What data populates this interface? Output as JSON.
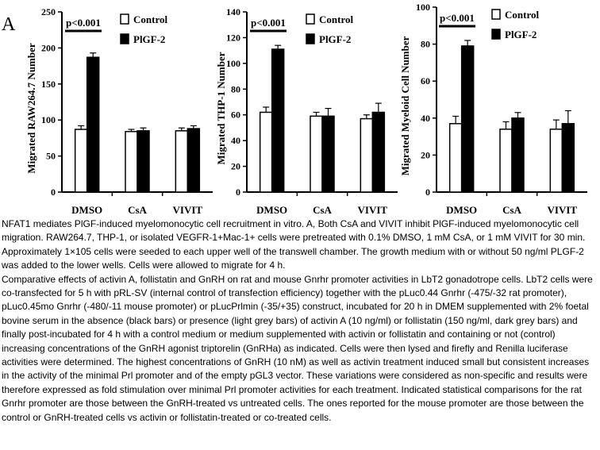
{
  "panel_label": "A",
  "chart_data": [
    {
      "type": "bar",
      "title": "",
      "ylabel": "Migrated RAW264.7 Number",
      "xlabel": "",
      "categories": [
        "DMSO",
        "CsA",
        "VIVIT"
      ],
      "ylim": [
        0,
        250
      ],
      "yticks": [
        0,
        50,
        100,
        150,
        200,
        250
      ],
      "series": [
        {
          "name": "Control",
          "color": "#ffffff",
          "values": [
            87,
            84,
            85
          ],
          "errors": [
            5,
            3,
            4
          ]
        },
        {
          "name": "PlGF-2",
          "color": "#000000",
          "values": [
            187,
            85,
            88
          ],
          "errors": [
            6,
            4,
            4
          ]
        }
      ],
      "significance": "p<0.001",
      "legend": "top-right"
    },
    {
      "type": "bar",
      "title": "",
      "ylabel": "Migrated THP-1 Number",
      "xlabel": "",
      "categories": [
        "DMSO",
        "CsA",
        "VIVIT"
      ],
      "ylim": [
        0,
        140
      ],
      "yticks": [
        0,
        20,
        40,
        60,
        80,
        100,
        120,
        140
      ],
      "series": [
        {
          "name": "Control",
          "color": "#ffffff",
          "values": [
            62,
            59,
            57
          ],
          "errors": [
            4,
            3,
            3
          ]
        },
        {
          "name": "PlGF-2",
          "color": "#000000",
          "values": [
            111,
            59,
            62
          ],
          "errors": [
            3,
            6,
            7
          ]
        }
      ],
      "significance": "p<0.001",
      "legend": "top-right"
    },
    {
      "type": "bar",
      "title": "",
      "ylabel": "Migrated Myeloid Cell Number",
      "xlabel": "",
      "categories": [
        "DMSO",
        "CsA",
        "VIVIT"
      ],
      "ylim": [
        0,
        100
      ],
      "yticks": [
        0,
        20,
        40,
        60,
        80,
        100
      ],
      "series": [
        {
          "name": "Control",
          "color": "#ffffff",
          "values": [
            37,
            34,
            34
          ],
          "errors": [
            4,
            4,
            5
          ]
        },
        {
          "name": "PlGF-2",
          "color": "#000000",
          "values": [
            79,
            40,
            37
          ],
          "errors": [
            3,
            3,
            7
          ]
        }
      ],
      "significance": "p<0.001",
      "legend": "top-right"
    }
  ],
  "caption": {
    "paragraph1": "NFAT1 mediates PlGF-induced myelomonocytic cell recruitment in vitro. A, Both CsA and VIVIT inhibit PlGF-induced myelomonocytic cell migration. RAW264.7, THP-1, or isolated VEGFR-1+Mac-1+ cells were pretreated with 0.1% DMSO, 1 mM CsA, or 1 mM VIVIT for 30 min. Approximately 1×105 cells were seeded to each upper well of the transwell chamber. The growth medium with or without 50 ng/ml PLGF-2 was added to the lower wells. Cells were allowed to migrate for 4 h.",
    "paragraph2": "Comparative effects of activin A, follistatin and GnRH on rat and mouse Gnrhr promoter activities in LbT2 gonadotrope cells. LbT2 cells were co-transfected for 5 h with pRL-SV (internal control of transfection efficiency) together with the pLuc0.44 Gnrhr (-475/-32 rat promoter), pLuc0.45mo Gnrhr (-480/-11 mouse promoter) or pLucPrlmin (-35/+35) construct, incubated for 20 h in DMEM supplemented with 2% foetal bovine serum in the absence (black bars) or presence (light grey bars) of activin A (10 ng/ml) or follistatin (150 ng/ml, dark grey bars) and finally post-incubated for 4 h with a control medium or medium supplemented with activin or follistatin and containing or not (control) increasing concentrations of the GnRH agonist triptorelin (GnRHa) as indicated. Cells were then lysed and firefly and Renilla luciferase activities were determined. The highest concentrations of GnRH (10 nM) as well as activin treatment induced small but consistent increases in the activity of the minimal Prl promoter and of the empty pGL3 vector. These variations were considered as non-specific and results were therefore expressed as fold stimulation over minimal Prl promoter activities for each treatment. Indicated statistical comparisons for the rat Gnrhr promoter are those between the GnRH-treated vs untreated cells. The ones reported for the mouse promoter are those between the control or GnRH-treated cells vs activin or follistatin-treated or co-treated cells."
  }
}
